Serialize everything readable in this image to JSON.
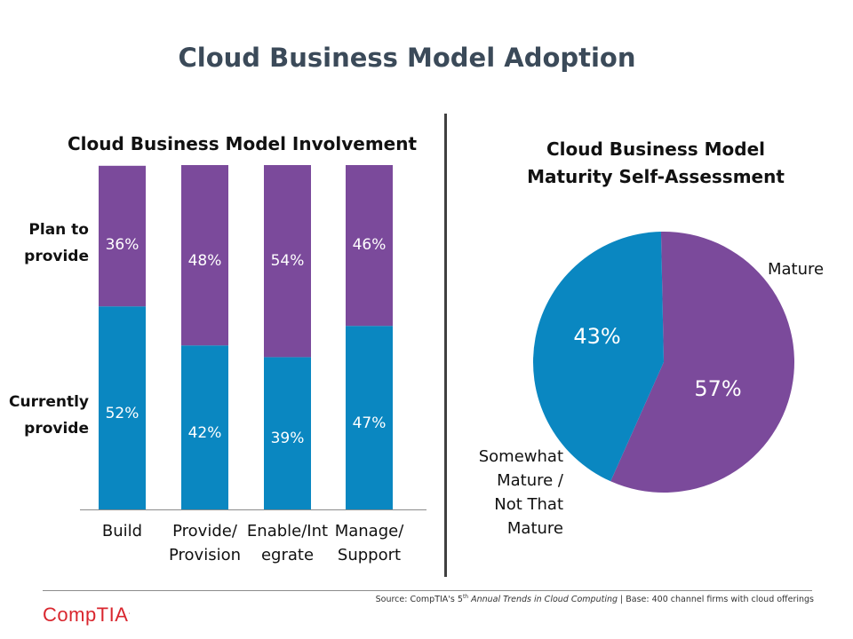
{
  "page": {
    "title": "Cloud Business Model Adoption",
    "source_prefix": "Source: CompTIA's 5",
    "source_sup": "th",
    "source_italic": "Annual Trends in Cloud Computing",
    "source_suffix": " | Base: 400 channel firms with cloud offerings",
    "logo": "CompTIA",
    "logo_mark": "."
  },
  "colors": {
    "plan": "#7b4a9b",
    "current": "#0a87c1"
  },
  "chart_data": [
    {
      "type": "bar",
      "stacked": true,
      "title": "Cloud Business Model Involvement",
      "categories": [
        [
          "Build"
        ],
        [
          "Provide/",
          "Provision"
        ],
        [
          "Enable/Int",
          "egrate"
        ],
        [
          "Manage/",
          "Support"
        ]
      ],
      "series": [
        {
          "name": "Currently provide",
          "label_lines": [
            "Currently",
            "provide"
          ],
          "values": [
            52,
            42,
            39,
            47
          ],
          "labels": [
            "52%",
            "42%",
            "39%",
            "47%"
          ]
        },
        {
          "name": "Plan to provide",
          "label_lines": [
            "Plan to",
            "provide"
          ],
          "values": [
            36,
            48,
            54,
            46
          ],
          "labels": [
            "36%",
            "48%",
            "54%",
            "46%"
          ]
        }
      ],
      "ylim": [
        0,
        100
      ]
    },
    {
      "type": "pie",
      "title_lines": [
        "Cloud Business Model",
        "Maturity Self-Assessment"
      ],
      "slices": [
        {
          "name": "Mature",
          "label_lines": [
            "Mature"
          ],
          "value": 57,
          "label": "57%"
        },
        {
          "name": "Somewhat Mature / Not That Mature",
          "label_lines": [
            "Somewhat",
            "Mature /",
            "Not That",
            "Mature"
          ],
          "value": 43,
          "label": "43%"
        }
      ]
    }
  ]
}
